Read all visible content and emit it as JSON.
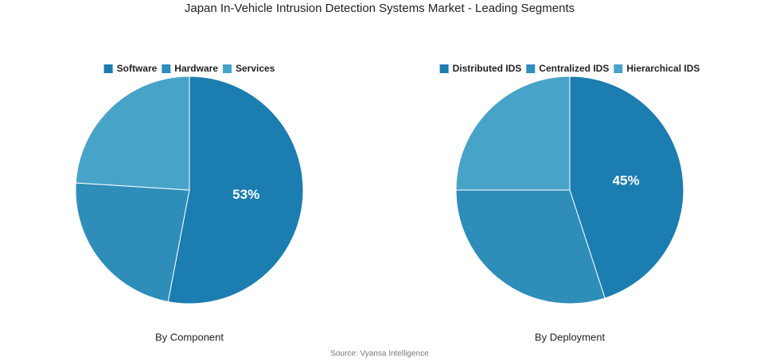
{
  "title": "Japan In-Vehicle Intrusion Detection Systems Market - Leading Segments",
  "source": "Source: Vyansa Intelligence",
  "chart_data": [
    {
      "type": "pie",
      "title": "By Component",
      "categories": [
        "Software",
        "Hardware",
        "Services"
      ],
      "values": [
        53,
        23,
        24
      ],
      "value_labels": [
        "53%",
        null,
        null
      ],
      "colors": [
        "#1b7db0",
        "#2f8dba",
        "#48a3c9"
      ]
    },
    {
      "type": "pie",
      "title": "By Deployment",
      "categories": [
        "Distributed IDS",
        "Centralized IDS",
        "Hierarchical IDS"
      ],
      "values": [
        45,
        30,
        25
      ],
      "value_labels": [
        "45%",
        null,
        null
      ],
      "colors": [
        "#1b7db0",
        "#2f8dba",
        "#48a3c9"
      ]
    }
  ]
}
